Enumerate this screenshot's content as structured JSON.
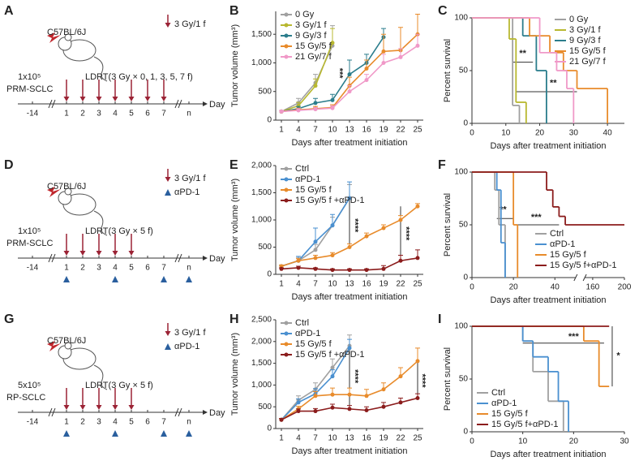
{
  "schematics": [
    {
      "panel": "A",
      "strain": "C57BL/6J",
      "cells": "1x10⁵",
      "model": "PRM-SCLC",
      "regimen": "LDRT(3 Gy × 0, 1, 3, 5, 7 f)",
      "legend": [
        "3 Gy/1 f"
      ],
      "timeline": [
        "-14",
        "1",
        "2",
        "3",
        "4",
        "5",
        "6",
        "7",
        "n"
      ],
      "axis_label": "Day"
    },
    {
      "panel": "D",
      "strain": "C57BL/6J",
      "cells": "1x10⁵",
      "model": "PRM-SCLC",
      "regimen": "LDRT(3 Gy × 5 f)",
      "legend": [
        "3 Gy/1 f",
        "αPD-1"
      ],
      "timeline": [
        "-14",
        "1",
        "2",
        "3",
        "4",
        "5",
        "6",
        "7",
        "n"
      ],
      "axis_label": "Day"
    },
    {
      "panel": "G",
      "strain": "C57BL/6J",
      "cells": "5x10⁵",
      "model": "RP-SCLC",
      "regimen": "LDRT(3 Gy × 5 f)",
      "legend": [
        "3 Gy/1 f",
        "αPD-1"
      ],
      "timeline": [
        "-14",
        "1",
        "2",
        "3",
        "4",
        "5",
        "6",
        "7",
        "n"
      ],
      "axis_label": "Day"
    }
  ],
  "chart_data": [
    {
      "panel": "B",
      "type": "line",
      "y_label": "Tumor volume (mm³)",
      "x_label": "Days after treatment initiation",
      "x": [
        1,
        4,
        7,
        10,
        13,
        16,
        19,
        22,
        25
      ],
      "xlim": [
        0,
        26
      ],
      "xticks": [
        1,
        4,
        7,
        10,
        13,
        16,
        19,
        22,
        25
      ],
      "ylim": [
        0,
        1900
      ],
      "yticks": [
        0,
        500,
        {
          "value": 1000,
          "label": "1,000"
        },
        {
          "value": 1500,
          "label": "1,500"
        }
      ],
      "legend": "upper left",
      "annotations": [
        "***"
      ],
      "series": [
        {
          "name": "0 Gy",
          "color": "#a0a0a0",
          "values": [
            150,
            300,
            650,
            1300,
            null,
            null,
            null,
            null,
            null
          ],
          "errors": [
            20,
            80,
            150,
            350,
            null,
            null,
            null,
            null,
            null
          ]
        },
        {
          "name": "3 Gy/1 f",
          "color": "#b8b830",
          "values": [
            150,
            250,
            600,
            1350,
            null,
            null,
            null,
            null,
            null
          ],
          "errors": [
            20,
            60,
            120,
            250,
            null,
            null,
            null,
            null,
            null
          ]
        },
        {
          "name": "9 Gy/3 f",
          "color": "#2b7d8c",
          "values": [
            150,
            200,
            300,
            350,
            800,
            1000,
            1450,
            null,
            null
          ],
          "errors": [
            20,
            40,
            80,
            100,
            250,
            150,
            150,
            null,
            null
          ]
        },
        {
          "name": "15 Gy/5 f",
          "color": "#e88b2b",
          "values": [
            150,
            180,
            200,
            220,
            600,
            900,
            1200,
            1220,
            1500
          ],
          "errors": [
            20,
            30,
            40,
            50,
            150,
            150,
            300,
            400,
            350
          ]
        },
        {
          "name": "21 Gy/7 f",
          "color": "#f099c8",
          "values": [
            150,
            170,
            190,
            210,
            500,
            700,
            1000,
            1100,
            1300
          ],
          "errors": [
            20,
            30,
            30,
            40,
            100,
            100,
            150,
            150,
            200
          ]
        }
      ]
    },
    {
      "panel": "C",
      "type": "survival",
      "y_label": "Percent survival",
      "x_label": "Days after treatment initiation",
      "xlim": [
        0,
        45
      ],
      "xticks": [
        0,
        10,
        20,
        30,
        40
      ],
      "ylim": [
        0,
        100
      ],
      "yticks": [
        0,
        50,
        100
      ],
      "legend": "upper right",
      "annotations": [
        "**",
        "**"
      ],
      "series": [
        {
          "name": "0 Gy",
          "color": "#a0a0a0",
          "x": [
            0,
            12,
            14
          ],
          "values": [
            100,
            17,
            0
          ]
        },
        {
          "name": "3 Gy/1 f",
          "color": "#b8b830",
          "x": [
            0,
            11,
            13,
            16
          ],
          "values": [
            100,
            80,
            20,
            0
          ]
        },
        {
          "name": "9 Gy/3 f",
          "color": "#2b7d8c",
          "x": [
            0,
            15,
            19,
            22
          ],
          "values": [
            100,
            83,
            50,
            0
          ]
        },
        {
          "name": "15 Gy/5 f",
          "color": "#e88b2b",
          "x": [
            0,
            17,
            23,
            27,
            31,
            40
          ],
          "values": [
            100,
            83,
            67,
            50,
            33,
            0
          ]
        },
        {
          "name": "21 Gy/7 f",
          "color": "#f099c8",
          "x": [
            0,
            20,
            25,
            28,
            30
          ],
          "values": [
            100,
            67,
            50,
            33,
            0
          ]
        }
      ]
    },
    {
      "panel": "E",
      "type": "line",
      "y_label": "Tumor volume (mm³)",
      "x_label": "Days after treatment initiation",
      "x": [
        1,
        4,
        7,
        10,
        13,
        16,
        19,
        22,
        25
      ],
      "xlim": [
        0,
        26
      ],
      "xticks": [
        1,
        4,
        7,
        10,
        13,
        16,
        19,
        22,
        25
      ],
      "ylim": [
        0,
        2000
      ],
      "yticks": [
        0,
        500,
        {
          "value": 1000,
          "label": "1,000"
        },
        {
          "value": 1500,
          "label": "1,500"
        },
        {
          "value": 2000,
          "label": "2,000"
        }
      ],
      "legend": "upper left",
      "annotations": [
        "****",
        "****"
      ],
      "series": [
        {
          "name": "Ctrl",
          "color": "#a0a0a0",
          "values": [
            150,
            250,
            450,
            900,
            1400,
            null,
            null,
            null,
            null
          ],
          "errors": [
            20,
            60,
            100,
            150,
            250,
            null,
            null,
            null,
            null
          ]
        },
        {
          "name": "αPD-1",
          "color": "#4a90d0",
          "values": [
            150,
            250,
            600,
            900,
            1400,
            null,
            null,
            null,
            null
          ],
          "errors": [
            20,
            80,
            250,
            200,
            300,
            null,
            null,
            null,
            null
          ]
        },
        {
          "name": "15 Gy/5 f",
          "color": "#e88b2b",
          "values": [
            150,
            250,
            300,
            350,
            500,
            700,
            850,
            1000,
            1250
          ],
          "errors": [
            20,
            40,
            50,
            50,
            60,
            60,
            60,
            80,
            50
          ]
        },
        {
          "name": "15 Gy/5 f +αPD-1",
          "color": "#8b1c1c",
          "values": [
            100,
            120,
            100,
            80,
            80,
            80,
            100,
            250,
            300
          ],
          "errors": [
            20,
            30,
            20,
            20,
            20,
            20,
            60,
            100,
            150
          ]
        }
      ]
    },
    {
      "panel": "F",
      "type": "survival",
      "y_label": "Percent survival",
      "x_label": "Days after treatment initiation",
      "xlim": [
        0,
        200
      ],
      "xbreak": [
        50,
        150
      ],
      "xticks": [
        0,
        20,
        40,
        160,
        200
      ],
      "ylim": [
        0,
        100
      ],
      "yticks": [
        0,
        50,
        100
      ],
      "legend": "lower right",
      "annotations": [
        "**",
        "***"
      ],
      "series": [
        {
          "name": "Ctrl",
          "color": "#a0a0a0",
          "x": [
            0,
            11,
            13,
            16
          ],
          "values": [
            100,
            83,
            50,
            0
          ]
        },
        {
          "name": "αPD-1",
          "color": "#4a90d0",
          "x": [
            0,
            12,
            14,
            16
          ],
          "values": [
            100,
            83,
            33,
            0
          ]
        },
        {
          "name": "15 Gy/5 f",
          "color": "#e88b2b",
          "x": [
            0,
            20,
            22
          ],
          "values": [
            100,
            50,
            0
          ]
        },
        {
          "name": "15 Gy/5 f+αPD-1",
          "color": "#8b1c1c",
          "x": [
            0,
            36,
            39,
            42,
            45,
            200
          ],
          "values": [
            100,
            83,
            67,
            58,
            50,
            50
          ]
        }
      ]
    },
    {
      "panel": "H",
      "type": "line",
      "y_label": "Tumor volume (mm³)",
      "x_label": "Days after treatment initiation",
      "x": [
        1,
        4,
        7,
        10,
        13,
        16,
        19,
        22,
        25
      ],
      "xlim": [
        0,
        26
      ],
      "xticks": [
        1,
        4,
        7,
        10,
        13,
        16,
        19,
        22,
        25
      ],
      "ylim": [
        0,
        2500
      ],
      "yticks": [
        0,
        500,
        {
          "value": 1000,
          "label": "1,000"
        },
        {
          "value": 1500,
          "label": "1,500"
        },
        {
          "value": 2000,
          "label": "2,000"
        },
        {
          "value": 2500,
          "label": "2,500"
        }
      ],
      "legend": "upper left",
      "annotations": [
        "****",
        "****"
      ],
      "series": [
        {
          "name": "Ctrl",
          "color": "#a0a0a0",
          "values": [
            200,
            650,
            900,
            1400,
            1900,
            null,
            null,
            null,
            null
          ],
          "errors": [
            30,
            100,
            150,
            200,
            250,
            null,
            null,
            null,
            null
          ]
        },
        {
          "name": "αPD-1",
          "color": "#4a90d0",
          "values": [
            200,
            600,
            800,
            1200,
            1850,
            null,
            null,
            null,
            null
          ],
          "errors": [
            30,
            80,
            120,
            150,
            200,
            null,
            null,
            null,
            null
          ]
        },
        {
          "name": "15 Gy/5 f",
          "color": "#e88b2b",
          "values": [
            200,
            450,
            750,
            780,
            780,
            750,
            900,
            1200,
            1550
          ],
          "errors": [
            30,
            60,
            100,
            150,
            150,
            150,
            150,
            200,
            300
          ]
        },
        {
          "name": "15 Gy/5 f +αPD-1",
          "color": "#8b1c1c",
          "values": [
            200,
            400,
            400,
            480,
            450,
            420,
            500,
            600,
            700
          ],
          "errors": [
            30,
            50,
            60,
            80,
            80,
            80,
            100,
            100,
            100
          ]
        }
      ]
    },
    {
      "panel": "I",
      "type": "survival",
      "y_label": "Percent survival",
      "x_label": "Days after treatment initiation",
      "xlim": [
        0,
        30
      ],
      "xticks": [
        0,
        10,
        20,
        30
      ],
      "ylim": [
        0,
        100
      ],
      "yticks": [
        0,
        50,
        100
      ],
      "legend": "lower left",
      "annotations": [
        "***",
        "*"
      ],
      "series": [
        {
          "name": "Ctrl",
          "color": "#a0a0a0",
          "x": [
            0,
            10,
            12,
            15,
            18
          ],
          "values": [
            100,
            86,
            57,
            29,
            0
          ]
        },
        {
          "name": "αPD-1",
          "color": "#4a90d0",
          "x": [
            0,
            10,
            12,
            15,
            17,
            19
          ],
          "values": [
            100,
            86,
            71,
            57,
            29,
            0
          ]
        },
        {
          "name": "15 Gy/5 f",
          "color": "#e88b2b",
          "x": [
            0,
            22,
            25,
            27
          ],
          "values": [
            100,
            86,
            43,
            43
          ]
        },
        {
          "name": "15 Gy/5 f+αPD-1",
          "color": "#8b1c1c",
          "x": [
            0,
            27
          ],
          "values": [
            100,
            100
          ]
        }
      ]
    }
  ]
}
